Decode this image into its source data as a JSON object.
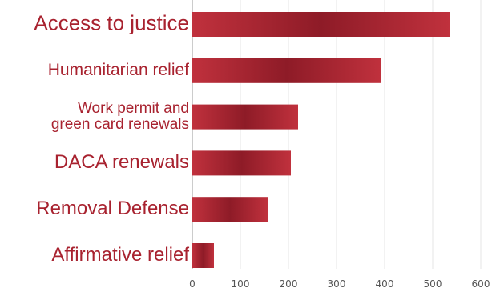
{
  "chart_data": {
    "type": "bar",
    "orientation": "horizontal",
    "categories": [
      "Access to justice",
      "Humanitarian relief",
      "Work permit and green card renewals",
      "DACA renewals",
      "Removal Defense",
      "Affirmative relief"
    ],
    "category_lines": [
      [
        "Access to justice"
      ],
      [
        "Humanitarian relief"
      ],
      [
        "Work permit and",
        "green card renewals"
      ],
      [
        "DACA renewals"
      ],
      [
        "Removal Defense"
      ],
      [
        "Affirmative relief"
      ]
    ],
    "values": [
      535,
      393,
      220,
      205,
      157,
      45
    ],
    "xlim": [
      0,
      600
    ],
    "xticks": [
      0,
      100,
      200,
      300,
      400,
      500,
      600
    ],
    "title": "",
    "xlabel": "",
    "ylabel": "",
    "grid": true,
    "legend": "none",
    "colors": {
      "bar_light": "#c0313d",
      "bar_dark": "#8e1b27",
      "label": "#a8222f",
      "grid": "#e6e6e6",
      "axis": "#9a9a9a"
    }
  }
}
